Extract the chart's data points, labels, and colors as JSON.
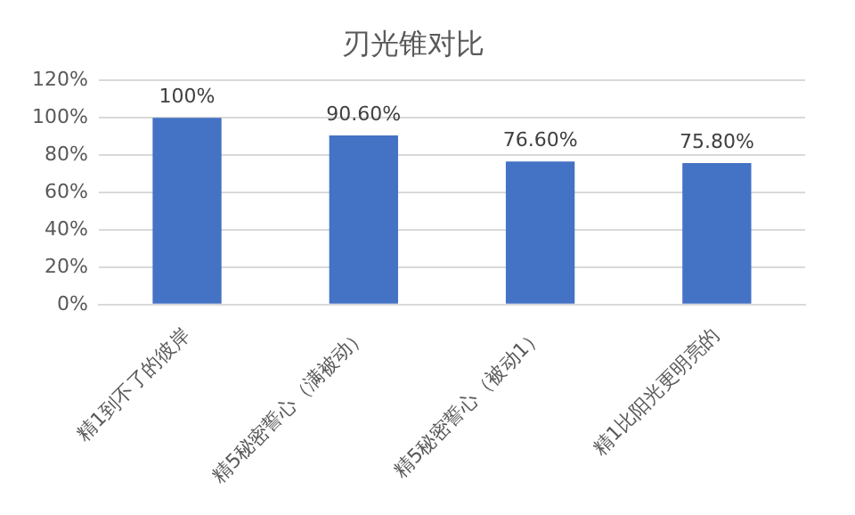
{
  "chart_data": {
    "type": "bar",
    "title": "刃光锥对比",
    "categories": [
      "精1到不了的彼岸",
      "精5秘密誓心（满被动）",
      "精5秘密誓心（被动1）",
      "精1比阳光更明亮的"
    ],
    "values": [
      100,
      90.6,
      76.6,
      75.8
    ],
    "value_labels": [
      "100%",
      "90.60%",
      "76.60%",
      "75.80%"
    ],
    "color": "#4472c4",
    "ylim": [
      0,
      120
    ],
    "yticks": [
      {
        "value": 0,
        "label": "0%"
      },
      {
        "value": 20,
        "label": "20%"
      },
      {
        "value": 40,
        "label": "40%"
      },
      {
        "value": 60,
        "label": "60%"
      },
      {
        "value": 80,
        "label": "80%"
      },
      {
        "value": 100,
        "label": "100%"
      },
      {
        "value": 120,
        "label": "120%"
      }
    ],
    "grid": "y",
    "legend": false
  }
}
